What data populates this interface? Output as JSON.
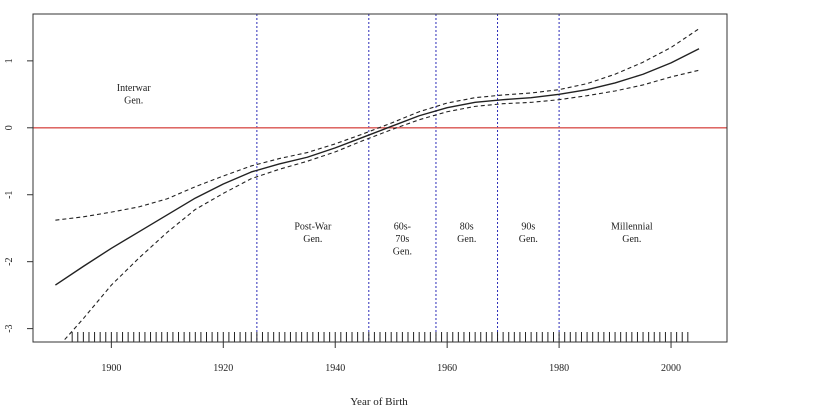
{
  "chart_data": {
    "type": "line",
    "title": "",
    "xlabel": "Year of Birth",
    "ylabel": "",
    "xlim": [
      1886,
      2010
    ],
    "ylim": [
      -3.2,
      1.7
    ],
    "xticks": [
      1900,
      1920,
      1940,
      1960,
      1980,
      2000
    ],
    "yticks": [
      -3,
      -2,
      -1,
      0,
      1
    ],
    "grid": false,
    "legend": "none",
    "reference_line": {
      "y": 0,
      "color": "#d9534f"
    },
    "period_boundaries": {
      "color": "#2b2bb8",
      "x": [
        1926,
        1946,
        1958,
        1969,
        1980
      ]
    },
    "series": [
      {
        "style": "solid",
        "x": [
          1890,
          1895,
          1900,
          1905,
          1910,
          1915,
          1920,
          1925,
          1930,
          1935,
          1940,
          1945,
          1950,
          1955,
          1960,
          1965,
          1970,
          1975,
          1980,
          1985,
          1990,
          1995,
          2000,
          2005
        ],
        "y": [
          -2.35,
          -2.07,
          -1.8,
          -1.55,
          -1.3,
          -1.05,
          -0.84,
          -0.66,
          -0.54,
          -0.44,
          -0.3,
          -0.14,
          0.02,
          0.18,
          0.3,
          0.38,
          0.42,
          0.45,
          0.5,
          0.57,
          0.67,
          0.8,
          0.97,
          1.18
        ]
      },
      {
        "style": "dashed",
        "x": [
          1890,
          1895,
          1900,
          1905,
          1910,
          1915,
          1920,
          1925,
          1930,
          1935,
          1940,
          1945,
          1950,
          1955,
          1960,
          1965,
          1970,
          1975,
          1980,
          1985,
          1990,
          1995,
          2000,
          2005
        ],
        "y": [
          -1.38,
          -1.33,
          -1.26,
          -1.18,
          -1.06,
          -0.88,
          -0.72,
          -0.57,
          -0.46,
          -0.37,
          -0.24,
          -0.09,
          0.07,
          0.24,
          0.37,
          0.45,
          0.49,
          0.52,
          0.57,
          0.66,
          0.8,
          0.98,
          1.2,
          1.48
        ]
      },
      {
        "style": "dashed",
        "x": [
          1890,
          1895,
          1900,
          1905,
          1910,
          1915,
          1920,
          1925,
          1930,
          1935,
          1940,
          1945,
          1950,
          1955,
          1960,
          1965,
          1970,
          1975,
          1980,
          1985,
          1990,
          1995,
          2000,
          2005
        ],
        "y": [
          -3.32,
          -2.85,
          -2.35,
          -1.94,
          -1.56,
          -1.22,
          -0.98,
          -0.76,
          -0.62,
          -0.5,
          -0.36,
          -0.19,
          -0.03,
          0.12,
          0.24,
          0.32,
          0.36,
          0.38,
          0.42,
          0.48,
          0.55,
          0.64,
          0.76,
          0.86
        ]
      }
    ],
    "generation_labels": [
      {
        "x": 1904,
        "y": 0.55,
        "lines": [
          "Interwar",
          "Gen."
        ]
      },
      {
        "x": 1936,
        "y": -1.52,
        "lines": [
          "Post-War",
          "Gen."
        ]
      },
      {
        "x": 1952,
        "y": -1.52,
        "lines": [
          "60s-",
          "70s",
          "Gen."
        ]
      },
      {
        "x": 1963.5,
        "y": -1.52,
        "lines": [
          "80s",
          "Gen."
        ]
      },
      {
        "x": 1974.5,
        "y": -1.52,
        "lines": [
          "90s",
          "Gen."
        ]
      },
      {
        "x": 1993,
        "y": -1.52,
        "lines": [
          "Millennial",
          "Gen."
        ]
      }
    ],
    "rug": {
      "x_start": 1893,
      "x_end": 2003,
      "step": 1
    }
  }
}
